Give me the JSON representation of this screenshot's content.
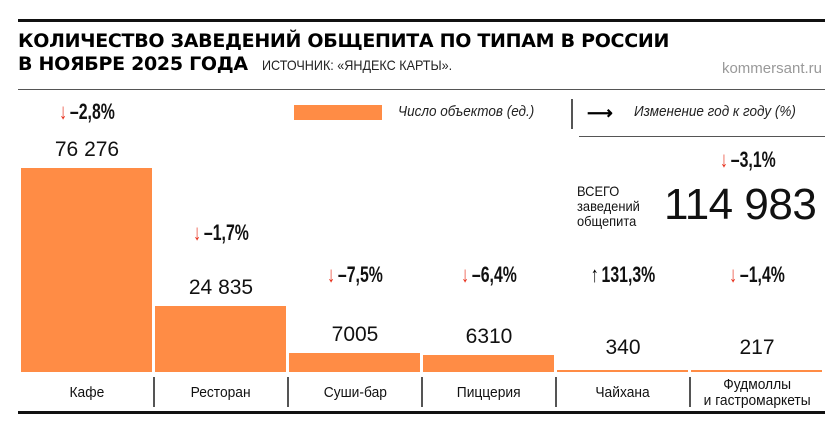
{
  "header": {
    "title_line1": "КОЛИЧЕСТВО ЗАВЕДЕНИЙ ОБЩЕПИТА ПО ТИПАМ В РОССИИ",
    "title_line2": "В НОЯБРЕ 2025 ГОДА",
    "source": "ИСТОЧНИК: «ЯНДЕКС КАРТЫ».",
    "site": "kommersant.ru"
  },
  "legend": {
    "count_label": "Число объектов (ед.)",
    "change_label": "Изменение год к году (%)",
    "arrow_glyph": "⟶"
  },
  "total": {
    "label_line1": "ВСЕГО",
    "label_line2": "заведений",
    "label_line3": "общепита",
    "value": "114 983",
    "change": "–3,1%",
    "direction": "down"
  },
  "colors": {
    "bar": "#ff8c45",
    "down_arrow": "#e8321e",
    "up_arrow": "#000000"
  },
  "chart_data": {
    "type": "bar",
    "title": "КОЛИЧЕСТВО ЗАВЕДЕНИЙ ОБЩЕПИТА ПО ТИПАМ В РОССИИ В НОЯБРЕ 2025 ГОДА",
    "xlabel": "",
    "ylabel": "Число объектов (ед.)",
    "ylim": [
      0,
      76276
    ],
    "grid": false,
    "categories": [
      "Кафе",
      "Ресторан",
      "Суши-бар",
      "Пиццерия",
      "Чайхана",
      "Фудмоллы и гастромаркеты"
    ],
    "category_lines": [
      [
        "Кафе"
      ],
      [
        "Ресторан"
      ],
      [
        "Суши-бар"
      ],
      [
        "Пиццерия"
      ],
      [
        "Чайхана"
      ],
      [
        "Фудмоллы",
        "и гастромаркеты"
      ]
    ],
    "values": [
      76276,
      24835,
      7005,
      6310,
      340,
      217
    ],
    "value_labels": [
      "76 276",
      "24 835",
      "7005",
      "6310",
      "340",
      "217"
    ],
    "changes": [
      -2.8,
      -1.7,
      -7.5,
      -6.4,
      131.3,
      -1.4
    ],
    "change_labels": [
      "–2,8%",
      "–1,7%",
      "–7,5%",
      "–6,4%",
      "131,3%",
      "–1,4%"
    ],
    "change_directions": [
      "down",
      "down",
      "down",
      "down",
      "up",
      "down"
    ]
  }
}
